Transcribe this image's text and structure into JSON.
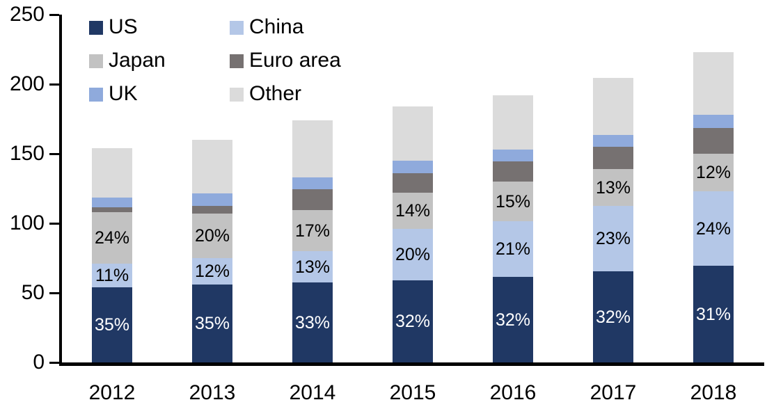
{
  "chart_data": {
    "type": "bar",
    "stacked": true,
    "title": "",
    "xlabel": "",
    "ylabel": "",
    "categories": [
      "2012",
      "2013",
      "2014",
      "2015",
      "2016",
      "2017",
      "2018"
    ],
    "series": [
      {
        "name": "US",
        "color": "#203864",
        "label_color": "#ffffff",
        "values": [
          54,
          56,
          57.5,
          59,
          61.5,
          65.5,
          69.5
        ],
        "labels": [
          "35%",
          "35%",
          "33%",
          "32%",
          "32%",
          "32%",
          "31%"
        ]
      },
      {
        "name": "China",
        "color": "#B4C7E7",
        "label_color": "#000000",
        "values": [
          17,
          19,
          22.5,
          37,
          40,
          47,
          53.5
        ],
        "labels": [
          "11%",
          "12%",
          "13%",
          "20%",
          "21%",
          "23%",
          "24%"
        ]
      },
      {
        "name": "Japan",
        "color": "#C2C2C2",
        "label_color": "#000000",
        "values": [
          37,
          32,
          29.5,
          26,
          28.5,
          26.5,
          27
        ],
        "labels": [
          "24%",
          "20%",
          "17%",
          "14%",
          "15%",
          "13%",
          "12%"
        ]
      },
      {
        "name": "Euro area",
        "color": "#767171",
        "label_color": "#000000",
        "values": [
          3.5,
          5.5,
          15,
          14,
          14.5,
          16,
          18.5
        ],
        "labels": [
          null,
          null,
          null,
          null,
          null,
          null,
          null
        ]
      },
      {
        "name": "UK",
        "color": "#8FAADC",
        "label_color": "#000000",
        "values": [
          7,
          9,
          8.5,
          9,
          8.5,
          8.5,
          9.5
        ],
        "labels": [
          null,
          null,
          null,
          null,
          null,
          null,
          null
        ]
      },
      {
        "name": "Other",
        "color": "#DBDBDB",
        "label_color": "#000000",
        "values": [
          35.5,
          38.5,
          41,
          39,
          39,
          41,
          45
        ],
        "labels": [
          null,
          null,
          null,
          null,
          null,
          null,
          null
        ]
      }
    ],
    "approx_totals": [
      154,
      160,
      174,
      184,
      192,
      204.5,
      223
    ],
    "y_axis": {
      "min": 0,
      "max": 250,
      "step": 50,
      "tick_labels": [
        "0",
        "50",
        "100",
        "150",
        "200",
        "250"
      ],
      "grid": false
    },
    "legend": {
      "position": "top-left",
      "columns": [
        [
          "US",
          "Japan",
          "UK"
        ],
        [
          "China",
          "Euro area",
          "Other"
        ]
      ]
    }
  }
}
